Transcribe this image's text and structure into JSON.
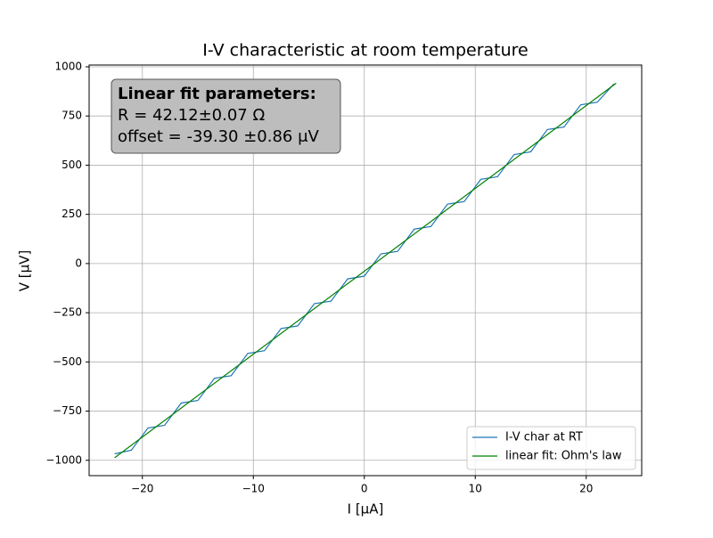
{
  "chart_data": {
    "type": "line",
    "title": "I-V characteristic at room temperature",
    "xlabel": "I [μA]",
    "ylabel": "V [μV]",
    "xlim": [
      -24.8,
      25.0
    ],
    "ylim": [
      -1078,
      1009
    ],
    "xticks": [
      {
        "value": -20,
        "label": "−20"
      },
      {
        "value": -10,
        "label": "−10"
      },
      0,
      10,
      20
    ],
    "yticks": [
      {
        "value": -1000,
        "label": "−1000"
      },
      {
        "value": -750,
        "label": "−750"
      },
      {
        "value": -500,
        "label": "−500"
      },
      {
        "value": -250,
        "label": "−250"
      },
      0,
      250,
      500,
      750,
      1000
    ],
    "grid": true,
    "legend": "lower right",
    "series": [
      {
        "name": "I-V char at RT",
        "color": "#1f77b4",
        "x": [
          -22.5,
          -21.0,
          -19.5,
          -18.0,
          -16.5,
          -15.0,
          -13.5,
          -12.0,
          -10.5,
          -9.0,
          -7.5,
          -6.0,
          -4.5,
          -3.0,
          -1.5,
          0,
          1.5,
          3.0,
          4.5,
          6.0,
          7.5,
          9.0,
          10.5,
          12.0,
          13.5,
          15.0,
          16.5,
          18.0,
          19.5,
          21.0,
          22.5
        ],
        "values": [
          -967,
          -949,
          -836,
          -822,
          -709,
          -696,
          -583,
          -570,
          -457,
          -443,
          -330,
          -317,
          -204,
          -191,
          -78,
          -64,
          49,
          62,
          175,
          188,
          302,
          315,
          428,
          441,
          554,
          568,
          681,
          694,
          807,
          820,
          913
        ]
      },
      {
        "name": "linear fit: Ohm's law",
        "color": "#008000",
        "x": [
          -22.5,
          22.7
        ],
        "values": [
          -987,
          916.8
        ]
      }
    ],
    "annotation": {
      "title": "Linear fit parameters:",
      "lines": [
        "R = 42.12±0.07 Ω",
        "offset = -39.30 ±0.86 μV"
      ]
    }
  }
}
